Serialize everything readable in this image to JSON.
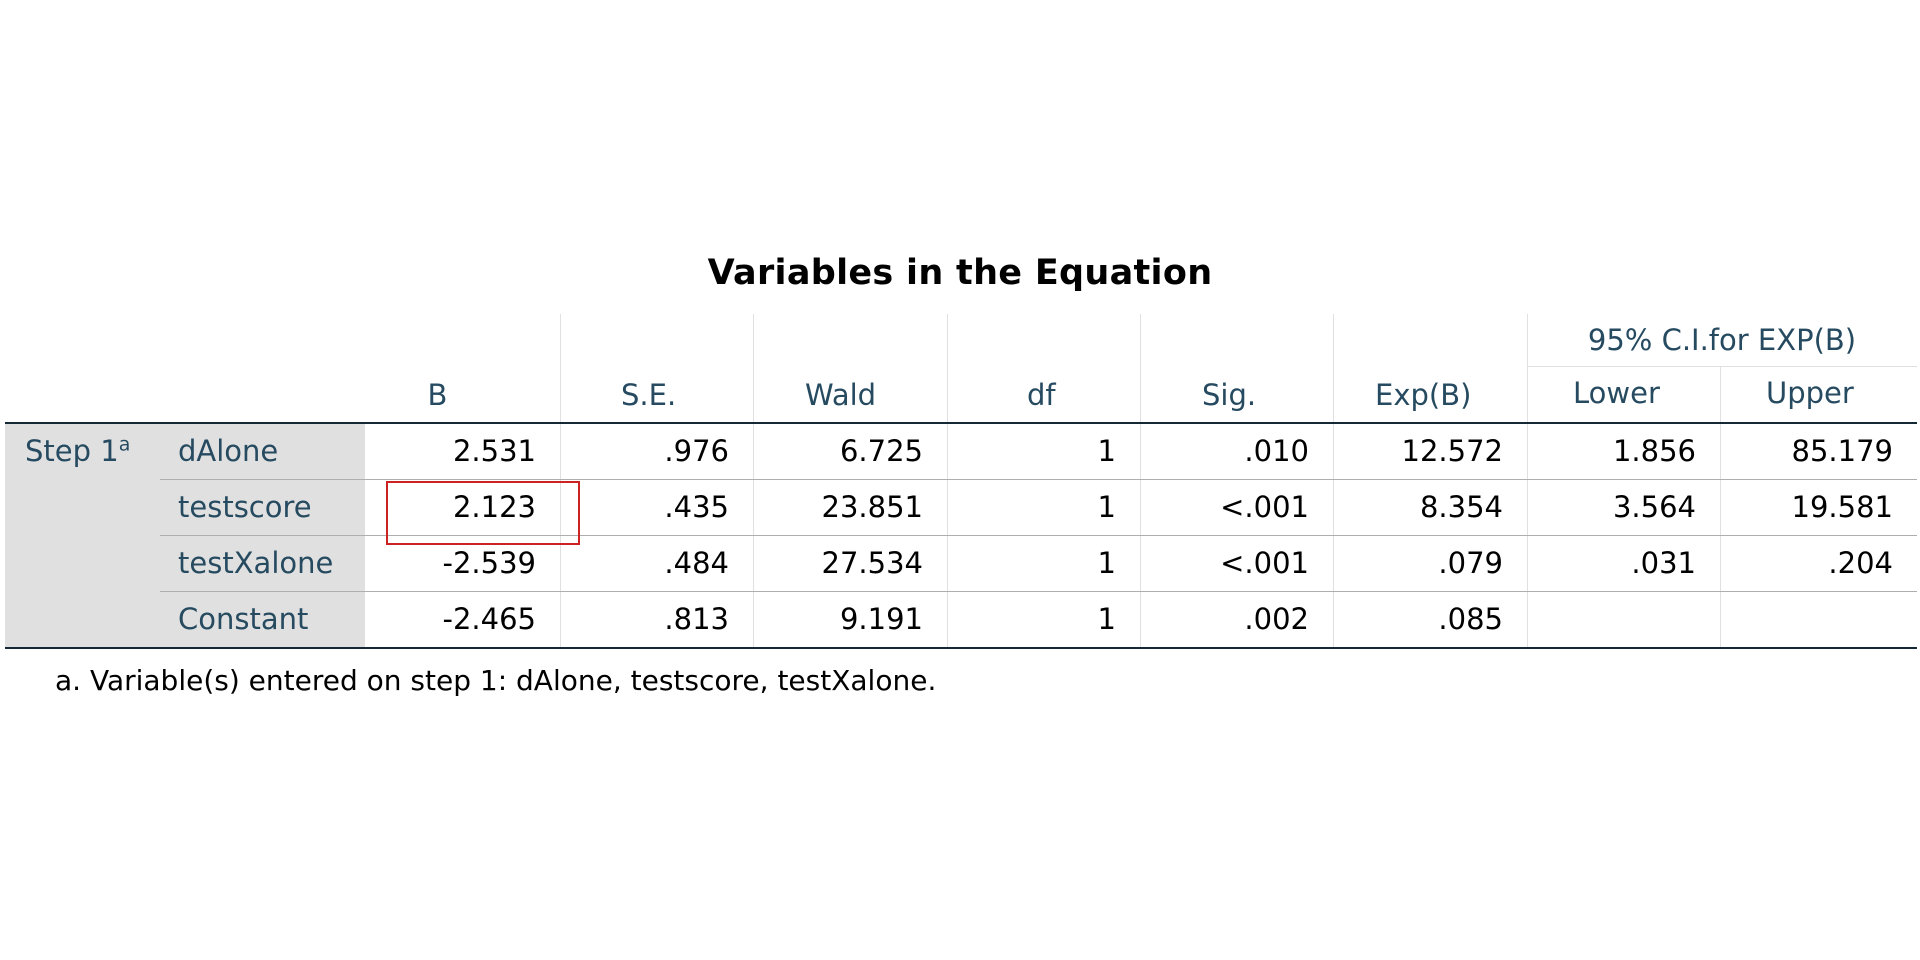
{
  "title": "Variables in the Equation",
  "columns": {
    "b": "B",
    "se": "S.E.",
    "wald": "Wald",
    "df": "df",
    "sig": "Sig.",
    "expb": "Exp(B)",
    "ci_group": "95% C.I.for EXP(B)",
    "lower": "Lower",
    "upper": "Upper"
  },
  "step": {
    "label": "Step 1",
    "superscript": "a"
  },
  "rows": [
    {
      "variable": "dAlone",
      "b": "2.531",
      "se": ".976",
      "wald": "6.725",
      "df": "1",
      "sig": ".010",
      "expb": "12.572",
      "lower": "1.856",
      "upper": "85.179"
    },
    {
      "variable": "testscore",
      "b": "2.123",
      "se": ".435",
      "wald": "23.851",
      "df": "1",
      "sig": "<.001",
      "expb": "8.354",
      "lower": "3.564",
      "upper": "19.581"
    },
    {
      "variable": "testXalone",
      "b": "-2.539",
      "se": ".484",
      "wald": "27.534",
      "df": "1",
      "sig": "<.001",
      "expb": ".079",
      "lower": ".031",
      "upper": ".204"
    },
    {
      "variable": "Constant",
      "b": "-2.465",
      "se": ".813",
      "wald": "9.191",
      "df": "1",
      "sig": ".002",
      "expb": ".085",
      "lower": "",
      "upper": ""
    }
  ],
  "footnote": "a. Variable(s) entered on step 1: dAlone, testscore, testXalone.",
  "colors": {
    "header_text": "#264a60",
    "label_bg": "#e0e0e0",
    "border_dark": "#152935",
    "border_row": "#aeaeae",
    "highlight_box": "#cc2222"
  }
}
